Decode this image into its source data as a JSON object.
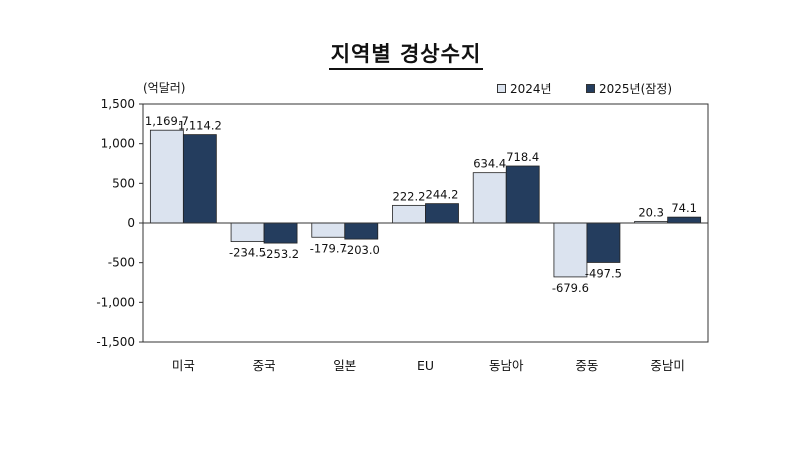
{
  "title": "지역별 경상수지",
  "unit_label": "(억달러)",
  "colors": {
    "s2024": "#dbe3ef",
    "s2025": "#243d5e",
    "border": "#222222"
  },
  "chart_data": {
    "type": "bar",
    "title": "지역별 경상수지",
    "ylabel": "(억달러)",
    "ylim": [
      -1500,
      1500
    ],
    "yticks": [
      1500,
      1000,
      500,
      0,
      -500,
      -1000,
      -1500
    ],
    "ytick_labels": [
      "1,500",
      "1,000",
      "500",
      "0",
      "-500",
      "-1,000",
      "-1,500"
    ],
    "grid": false,
    "legend_position": "top-right",
    "categories": [
      "미국",
      "중국",
      "일본",
      "EU",
      "동남아",
      "중동",
      "중남미"
    ],
    "series": [
      {
        "name": "2024년",
        "values": [
          1169.7,
          -234.5,
          -179.7,
          222.2,
          634.4,
          -679.6,
          20.3
        ],
        "labels": [
          "1,169.7",
          "-234.5",
          "-179.7",
          "222.2",
          "634.4",
          "-679.6",
          "20.3"
        ]
      },
      {
        "name": "2025년(잠정)",
        "values": [
          1114.2,
          -253.2,
          -203.0,
          244.2,
          718.4,
          -497.5,
          74.1
        ],
        "labels": [
          "1,114.2",
          "-253.2",
          "-203.0",
          "244.2",
          "718.4",
          "-497.5",
          "74.1"
        ]
      }
    ]
  }
}
